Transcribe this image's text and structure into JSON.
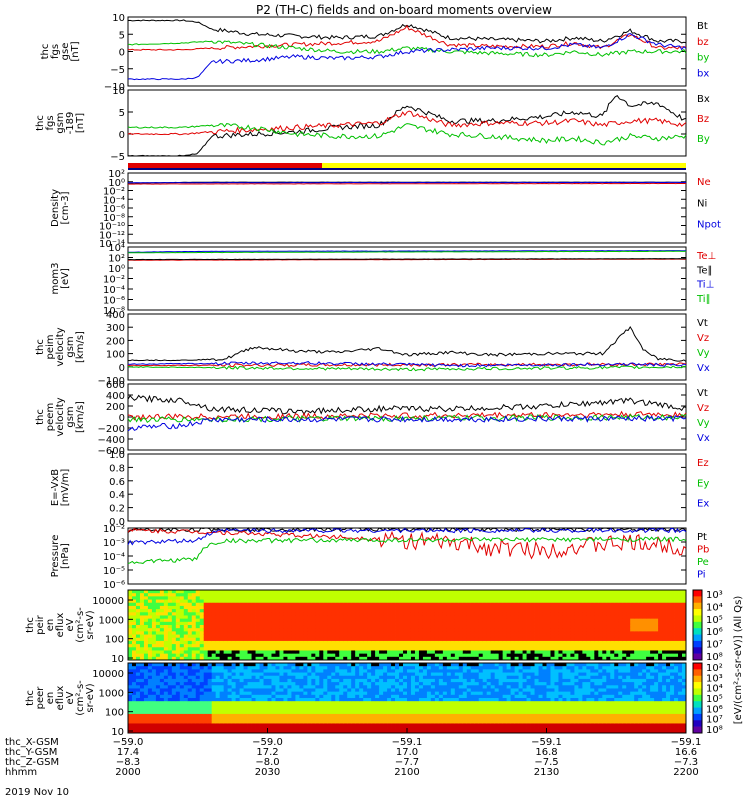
{
  "title": "P2 (TH-C) fields and on-board moments overview",
  "chart_data": [
    {
      "id": "fgs_gse",
      "type": "line",
      "ylabel": [
        "thc",
        "fgs",
        "gse",
        "[nT]"
      ],
      "ylim": [
        -10,
        10
      ],
      "yticks": [
        "10",
        "5",
        "0",
        "−5",
        "−10"
      ],
      "series": [
        {
          "name": "Bt",
          "color": "#000000",
          "x": [
            2000,
            2020,
            2025,
            2030,
            2045,
            2060,
            2075,
            2090,
            2100,
            2115,
            2130,
            2150,
            2160,
            2170,
            2180,
            2190,
            2200
          ],
          "y": [
            9,
            9,
            8.5,
            6.5,
            5,
            4.5,
            4,
            4.5,
            8,
            4,
            3.5,
            3,
            4,
            3,
            6,
            3,
            3
          ]
        },
        {
          "name": "bz",
          "color": "#e00000",
          "x": [
            2000,
            2020,
            2030,
            2045,
            2060,
            2075,
            2090,
            2100,
            2115,
            2130,
            2150,
            2160,
            2170,
            2180,
            2190,
            2200
          ],
          "y": [
            0.5,
            0.5,
            1,
            1.5,
            2,
            2.5,
            3,
            7,
            2,
            1.5,
            1.5,
            2.5,
            1,
            5,
            1,
            1
          ]
        },
        {
          "name": "by",
          "color": "#00c000",
          "x": [
            2000,
            2020,
            2030,
            2045,
            2060,
            2075,
            2090,
            2100,
            2115,
            2130,
            2150,
            2160,
            2170,
            2180,
            2190,
            2200
          ],
          "y": [
            2,
            2.5,
            3,
            2,
            1,
            0,
            0,
            1,
            0,
            -0.5,
            -1,
            0,
            -1,
            0,
            0,
            0
          ]
        },
        {
          "name": "bx",
          "color": "#0000e0",
          "x": [
            2000,
            2020,
            2025,
            2030,
            2045,
            2060,
            2075,
            2090,
            2100,
            2115,
            2130,
            2150,
            2160,
            2170,
            2180,
            2190,
            2200
          ],
          "y": [
            -8,
            -8,
            -7.5,
            -3,
            -2.5,
            -1.5,
            -2,
            -1.5,
            0,
            0.5,
            1,
            1,
            2,
            1,
            5,
            2,
            1
          ]
        }
      ]
    },
    {
      "id": "fgs_gsm",
      "type": "line",
      "ylabel": [
        "thc",
        "fgs",
        "gsm",
        "-189",
        "[nT]"
      ],
      "ylim": [
        -5,
        10
      ],
      "yticks": [
        "10",
        "5",
        "0",
        "−5"
      ],
      "series": [
        {
          "name": "Bx",
          "color": "#000000",
          "x": [
            2000,
            2020,
            2025,
            2030,
            2045,
            2060,
            2075,
            2090,
            2100,
            2115,
            2130,
            2150,
            2160,
            2170,
            2175,
            2180,
            2190,
            2200
          ],
          "y": [
            -5,
            -5,
            -4.5,
            -0.5,
            0,
            0.5,
            1.5,
            2,
            6.5,
            3,
            3,
            4,
            5,
            4,
            9,
            6.5,
            7,
            3
          ]
        },
        {
          "name": "Bz",
          "color": "#e00000",
          "x": [
            2000,
            2020,
            2030,
            2045,
            2060,
            2075,
            2090,
            2100,
            2115,
            2130,
            2150,
            2160,
            2170,
            2180,
            2190,
            2200
          ],
          "y": [
            0,
            0,
            0.5,
            1,
            1.5,
            2,
            2.5,
            5,
            2,
            2.5,
            2.5,
            3,
            2,
            3,
            3,
            2
          ]
        },
        {
          "name": "By",
          "color": "#00c000",
          "x": [
            2000,
            2020,
            2030,
            2045,
            2060,
            2075,
            2090,
            2100,
            2115,
            2130,
            2150,
            2160,
            2170,
            2180,
            2190,
            2200
          ],
          "y": [
            1.5,
            1.5,
            2,
            1.5,
            0,
            -0.5,
            -0.5,
            2,
            0,
            -0.5,
            -1.5,
            -1,
            -2,
            -0.5,
            -1,
            -0.5
          ]
        }
      ]
    },
    {
      "id": "density",
      "type": "line",
      "log": true,
      "ylabel": [
        "Density",
        "[cm-3]"
      ],
      "ylim_exp": [
        -14,
        2
      ],
      "yticks": [
        "10²",
        "10⁰",
        "10⁻²",
        "10⁻⁴",
        "10⁻⁶",
        "10⁻⁸",
        "10⁻¹⁰",
        "10⁻¹²",
        "10⁻¹⁴"
      ],
      "series": [
        {
          "name": "Ne",
          "color": "#e00000",
          "x": [
            2000,
            2200
          ],
          "y": [
            0.3,
            0.4
          ]
        },
        {
          "name": "Ni",
          "color": "#000000",
          "x": [
            2000,
            2030,
            2200
          ],
          "y": [
            0.5,
            0.8,
            0.8
          ]
        },
        {
          "name": "Npot",
          "color": "#0000e0",
          "x": [
            2000,
            2200
          ],
          "y": [
            0.6,
            0.7
          ]
        }
      ]
    },
    {
      "id": "temps",
      "type": "line",
      "log": true,
      "ylabel": [
        "mom3",
        "[eV]"
      ],
      "ylim_exp": [
        -8,
        4
      ],
      "yticks": [
        "10⁴",
        "10²",
        "10⁰",
        "10⁻²",
        "10⁻⁴",
        "10⁻⁶",
        "10⁻⁸"
      ],
      "series": [
        {
          "name": "Te⊥",
          "color": "#e00000",
          "x": [
            2000,
            2200
          ],
          "y": [
            30,
            50
          ]
        },
        {
          "name": "Te∥",
          "color": "#000000",
          "x": [
            2000,
            2200
          ],
          "y": [
            40,
            60
          ]
        },
        {
          "name": "Ti⊥",
          "color": "#0000e0",
          "x": [
            2000,
            2030,
            2200
          ],
          "y": [
            1000,
            1500,
            2000
          ]
        },
        {
          "name": "Ti∥",
          "color": "#00c000",
          "x": [
            2000,
            2200
          ],
          "y": [
            800,
            1500
          ]
        }
      ]
    },
    {
      "id": "peim_vel",
      "type": "line",
      "ylabel": [
        "thc",
        "peim",
        "velocity",
        "gsm",
        "[km/s]"
      ],
      "ylim": [
        -100,
        400
      ],
      "yticks": [
        "400",
        "300",
        "200",
        "100",
        "0",
        "−100"
      ],
      "series": [
        {
          "name": "Vt",
          "color": "#000000",
          "x": [
            2000,
            2020,
            2035,
            2045,
            2060,
            2075,
            2090,
            2100,
            2115,
            2130,
            2150,
            2160,
            2170,
            2180,
            2185,
            2190,
            2200
          ],
          "y": [
            50,
            50,
            60,
            150,
            120,
            110,
            140,
            90,
            110,
            90,
            100,
            100,
            100,
            300,
            120,
            60,
            50
          ]
        },
        {
          "name": "Vz",
          "color": "#e00000",
          "x": [
            2000,
            2200
          ],
          "y": [
            10,
            20
          ]
        },
        {
          "name": "Vy",
          "color": "#00c000",
          "x": [
            2000,
            2100,
            2200
          ],
          "y": [
            0,
            -20,
            0
          ]
        },
        {
          "name": "Vx",
          "color": "#0000e0",
          "x": [
            2000,
            2060,
            2120,
            2180,
            2200
          ],
          "y": [
            20,
            30,
            10,
            20,
            10
          ]
        }
      ]
    },
    {
      "id": "peem_vel",
      "type": "line",
      "ylabel": [
        "thc",
        "peem",
        "velocity",
        "gsm",
        "[km/s]"
      ],
      "ylim": [
        -600,
        600
      ],
      "yticks": [
        "600",
        "400",
        "200",
        "0",
        "−200",
        "−400",
        "−600"
      ],
      "series": [
        {
          "name": "Vt",
          "color": "#000000",
          "x": [
            2000,
            2020,
            2030,
            2060,
            2090,
            2120,
            2150,
            2180,
            2200
          ],
          "y": [
            350,
            300,
            150,
            100,
            150,
            150,
            200,
            300,
            150
          ]
        },
        {
          "name": "Vz",
          "color": "#e00000",
          "x": [
            2000,
            2200
          ],
          "y": [
            0,
            50
          ]
        },
        {
          "name": "Vy",
          "color": "#00c000",
          "x": [
            2000,
            2200
          ],
          "y": [
            -50,
            0
          ]
        },
        {
          "name": "Vx",
          "color": "#0000e0",
          "x": [
            2000,
            2020,
            2030,
            2200
          ],
          "y": [
            -200,
            -150,
            -50,
            -30
          ]
        }
      ]
    },
    {
      "id": "efield",
      "type": "line",
      "ylabel": [
        "E=-VxB",
        "[mV/m]"
      ],
      "ylim": [
        0,
        1
      ],
      "yticks": [
        "1.0",
        "0.8",
        "0.6",
        "0.4",
        "0.2",
        "0.0"
      ],
      "series": [
        {
          "name": "Ez",
          "color": "#e00000",
          "x": [],
          "y": []
        },
        {
          "name": "Ey",
          "color": "#00c000",
          "x": [],
          "y": []
        },
        {
          "name": "Ex",
          "color": "#0000e0",
          "x": [],
          "y": []
        }
      ]
    },
    {
      "id": "pressure",
      "type": "line",
      "log": true,
      "ylabel": [
        "Pressure",
        "[nPa]"
      ],
      "ylim_exp": [
        -6,
        -1.5
      ],
      "yticks": [
        "10⁻²",
        "10⁻³",
        "10⁻⁴",
        "10⁻⁵",
        "10⁻⁶"
      ],
      "series": [
        {
          "name": "Pt",
          "color": "#000000",
          "x": [
            2000,
            2030,
            2100,
            2200
          ],
          "y": [
            0.02,
            0.025,
            0.025,
            0.025
          ]
        },
        {
          "name": "Pb",
          "color": "#e00000",
          "x": [
            2000,
            2030,
            2060,
            2100,
            2130,
            2150,
            2180,
            2200
          ],
          "y": [
            0.02,
            0.015,
            0.008,
            0.003,
            0.0008,
            0.0005,
            0.002,
            0.0008
          ]
        },
        {
          "name": "Pe",
          "color": "#00c000",
          "x": [
            2000,
            2025,
            2035,
            2200
          ],
          "y": [
            5e-05,
            0.0001,
            0.003,
            0.004
          ]
        },
        {
          "name": "Pi",
          "color": "#0000e0",
          "x": [
            2000,
            2025,
            2035,
            2200
          ],
          "y": [
            0.002,
            0.003,
            0.02,
            0.02
          ]
        }
      ]
    },
    {
      "id": "peir_spec",
      "type": "heatmap",
      "ylabel": [
        "thc",
        "peir",
        "en",
        "eflux",
        "eV",
        "(cm²-s-",
        "sr-eV)"
      ],
      "yticks": [
        "10000",
        "1000",
        "100",
        "10"
      ]
    },
    {
      "id": "peer_spec",
      "type": "heatmap",
      "ylabel": [
        "thc",
        "peer",
        "en",
        "eflux",
        "eV",
        "(cm²-s-",
        "sr-eV)"
      ],
      "yticks": [
        "10000",
        "1000",
        "100",
        "10"
      ]
    }
  ],
  "colorbars": [
    {
      "ticks": [
        "10⁸",
        "10⁷",
        "10⁶",
        "10⁵",
        "10⁴",
        "10³"
      ],
      "label": "[eV/(cm²-s-sr-eV)] (All Qs)"
    },
    {
      "ticks": [
        "10⁸",
        "10⁷",
        "10⁶",
        "10⁵",
        "10⁴",
        "10³",
        "10²"
      ],
      "label": "[eV/(cm²-s-sr-eV)]"
    }
  ],
  "xaxis": {
    "rows": [
      {
        "label": "thc_X-GSM",
        "values": [
          "−59.0",
          "−59.0",
          "−59.1",
          "−59.1",
          "−59.1"
        ]
      },
      {
        "label": "thc_Y-GSM",
        "values": [
          "17.4",
          "17.2",
          "17.0",
          "16.8",
          "16.6"
        ]
      },
      {
        "label": "thc_Z-GSM",
        "values": [
          "−8.3",
          "−8.0",
          "−7.7",
          "−7.5",
          "−7.3"
        ]
      },
      {
        "label": "hhmm",
        "values": [
          "2000",
          "2030",
          "2100",
          "2130",
          "2200"
        ]
      }
    ],
    "date": "2019 Nov 10"
  }
}
